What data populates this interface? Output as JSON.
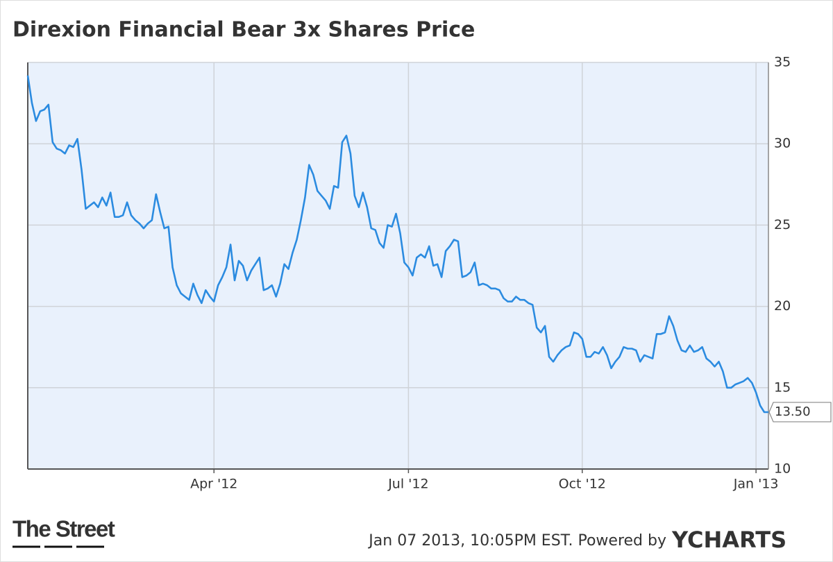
{
  "chart_data": {
    "type": "line",
    "title": "Direxion Financial Bear 3x Shares Price",
    "xlim": [
      0,
      179
    ],
    "xticks": [
      {
        "value": 45,
        "label": "Apr '12"
      },
      {
        "value": 92,
        "label": "Jul '12"
      },
      {
        "value": 134,
        "label": "Oct '12"
      },
      {
        "value": 176,
        "label": "Jan '13"
      }
    ],
    "ylim": [
      10,
      35
    ],
    "yticks": [
      10,
      15,
      20,
      25,
      30,
      35
    ],
    "grid": true,
    "series": [
      {
        "color": "#2b8be0",
        "values": [
          34.2,
          32.5,
          31.4,
          32.0,
          32.1,
          32.4,
          30.1,
          29.7,
          29.6,
          29.4,
          29.9,
          29.8,
          30.3,
          28.4,
          26.0,
          26.2,
          26.4,
          26.1,
          26.7,
          26.2,
          27.0,
          25.5,
          25.5,
          25.6,
          26.4,
          25.6,
          25.3,
          25.1,
          24.8,
          25.1,
          25.3,
          26.9,
          25.8,
          24.8,
          24.9,
          22.4,
          21.3,
          20.8,
          20.6,
          20.4,
          21.4,
          20.7,
          20.2,
          21.0,
          20.6,
          20.3,
          21.3,
          21.8,
          22.4,
          23.8,
          21.6,
          22.8,
          22.5,
          21.6,
          22.2,
          22.6,
          23.0,
          21.0,
          21.1,
          21.3,
          20.6,
          21.4,
          22.6,
          22.3,
          23.3,
          24.1,
          25.3,
          26.7,
          28.7,
          28.1,
          27.1,
          26.8,
          26.5,
          26.0,
          27.4,
          27.3,
          30.1,
          30.5,
          29.4,
          26.8,
          26.1,
          27.0,
          26.1,
          24.8,
          24.7,
          23.9,
          23.6,
          25.0,
          24.9,
          25.7,
          24.5,
          22.7,
          22.4,
          21.9,
          23.0,
          23.2,
          23.0,
          23.7,
          22.5,
          22.6,
          21.8,
          23.4,
          23.7,
          24.1,
          24.0,
          21.8,
          21.9,
          22.1,
          22.7,
          21.3,
          21.4,
          21.3,
          21.1,
          21.1,
          21.0,
          20.5,
          20.3,
          20.3,
          20.6,
          20.4,
          20.4,
          20.2,
          20.1,
          18.7,
          18.4,
          18.8,
          16.9,
          16.6,
          17.0,
          17.3,
          17.5,
          17.6,
          18.4,
          18.3,
          18.0,
          16.9,
          16.9,
          17.2,
          17.1,
          17.5,
          17.0,
          16.2,
          16.6,
          16.9,
          17.5,
          17.4,
          17.4,
          17.3,
          16.6,
          17.0,
          16.9,
          16.8,
          18.3,
          18.3,
          18.4,
          19.4,
          18.8,
          17.9,
          17.3,
          17.2,
          17.6,
          17.2,
          17.3,
          17.5,
          16.8,
          16.6,
          16.3,
          16.6,
          16.0,
          15.0,
          15.0,
          15.2,
          15.3,
          15.4,
          15.6,
          15.3,
          14.7,
          13.9,
          13.5,
          13.5
        ]
      }
    ],
    "annotation": {
      "value": 13.5,
      "label": "13.50"
    },
    "source": "The Street",
    "footer": "Jan 07 2013, 10:05PM EST. Powered by",
    "brand": "YCHARTS"
  }
}
